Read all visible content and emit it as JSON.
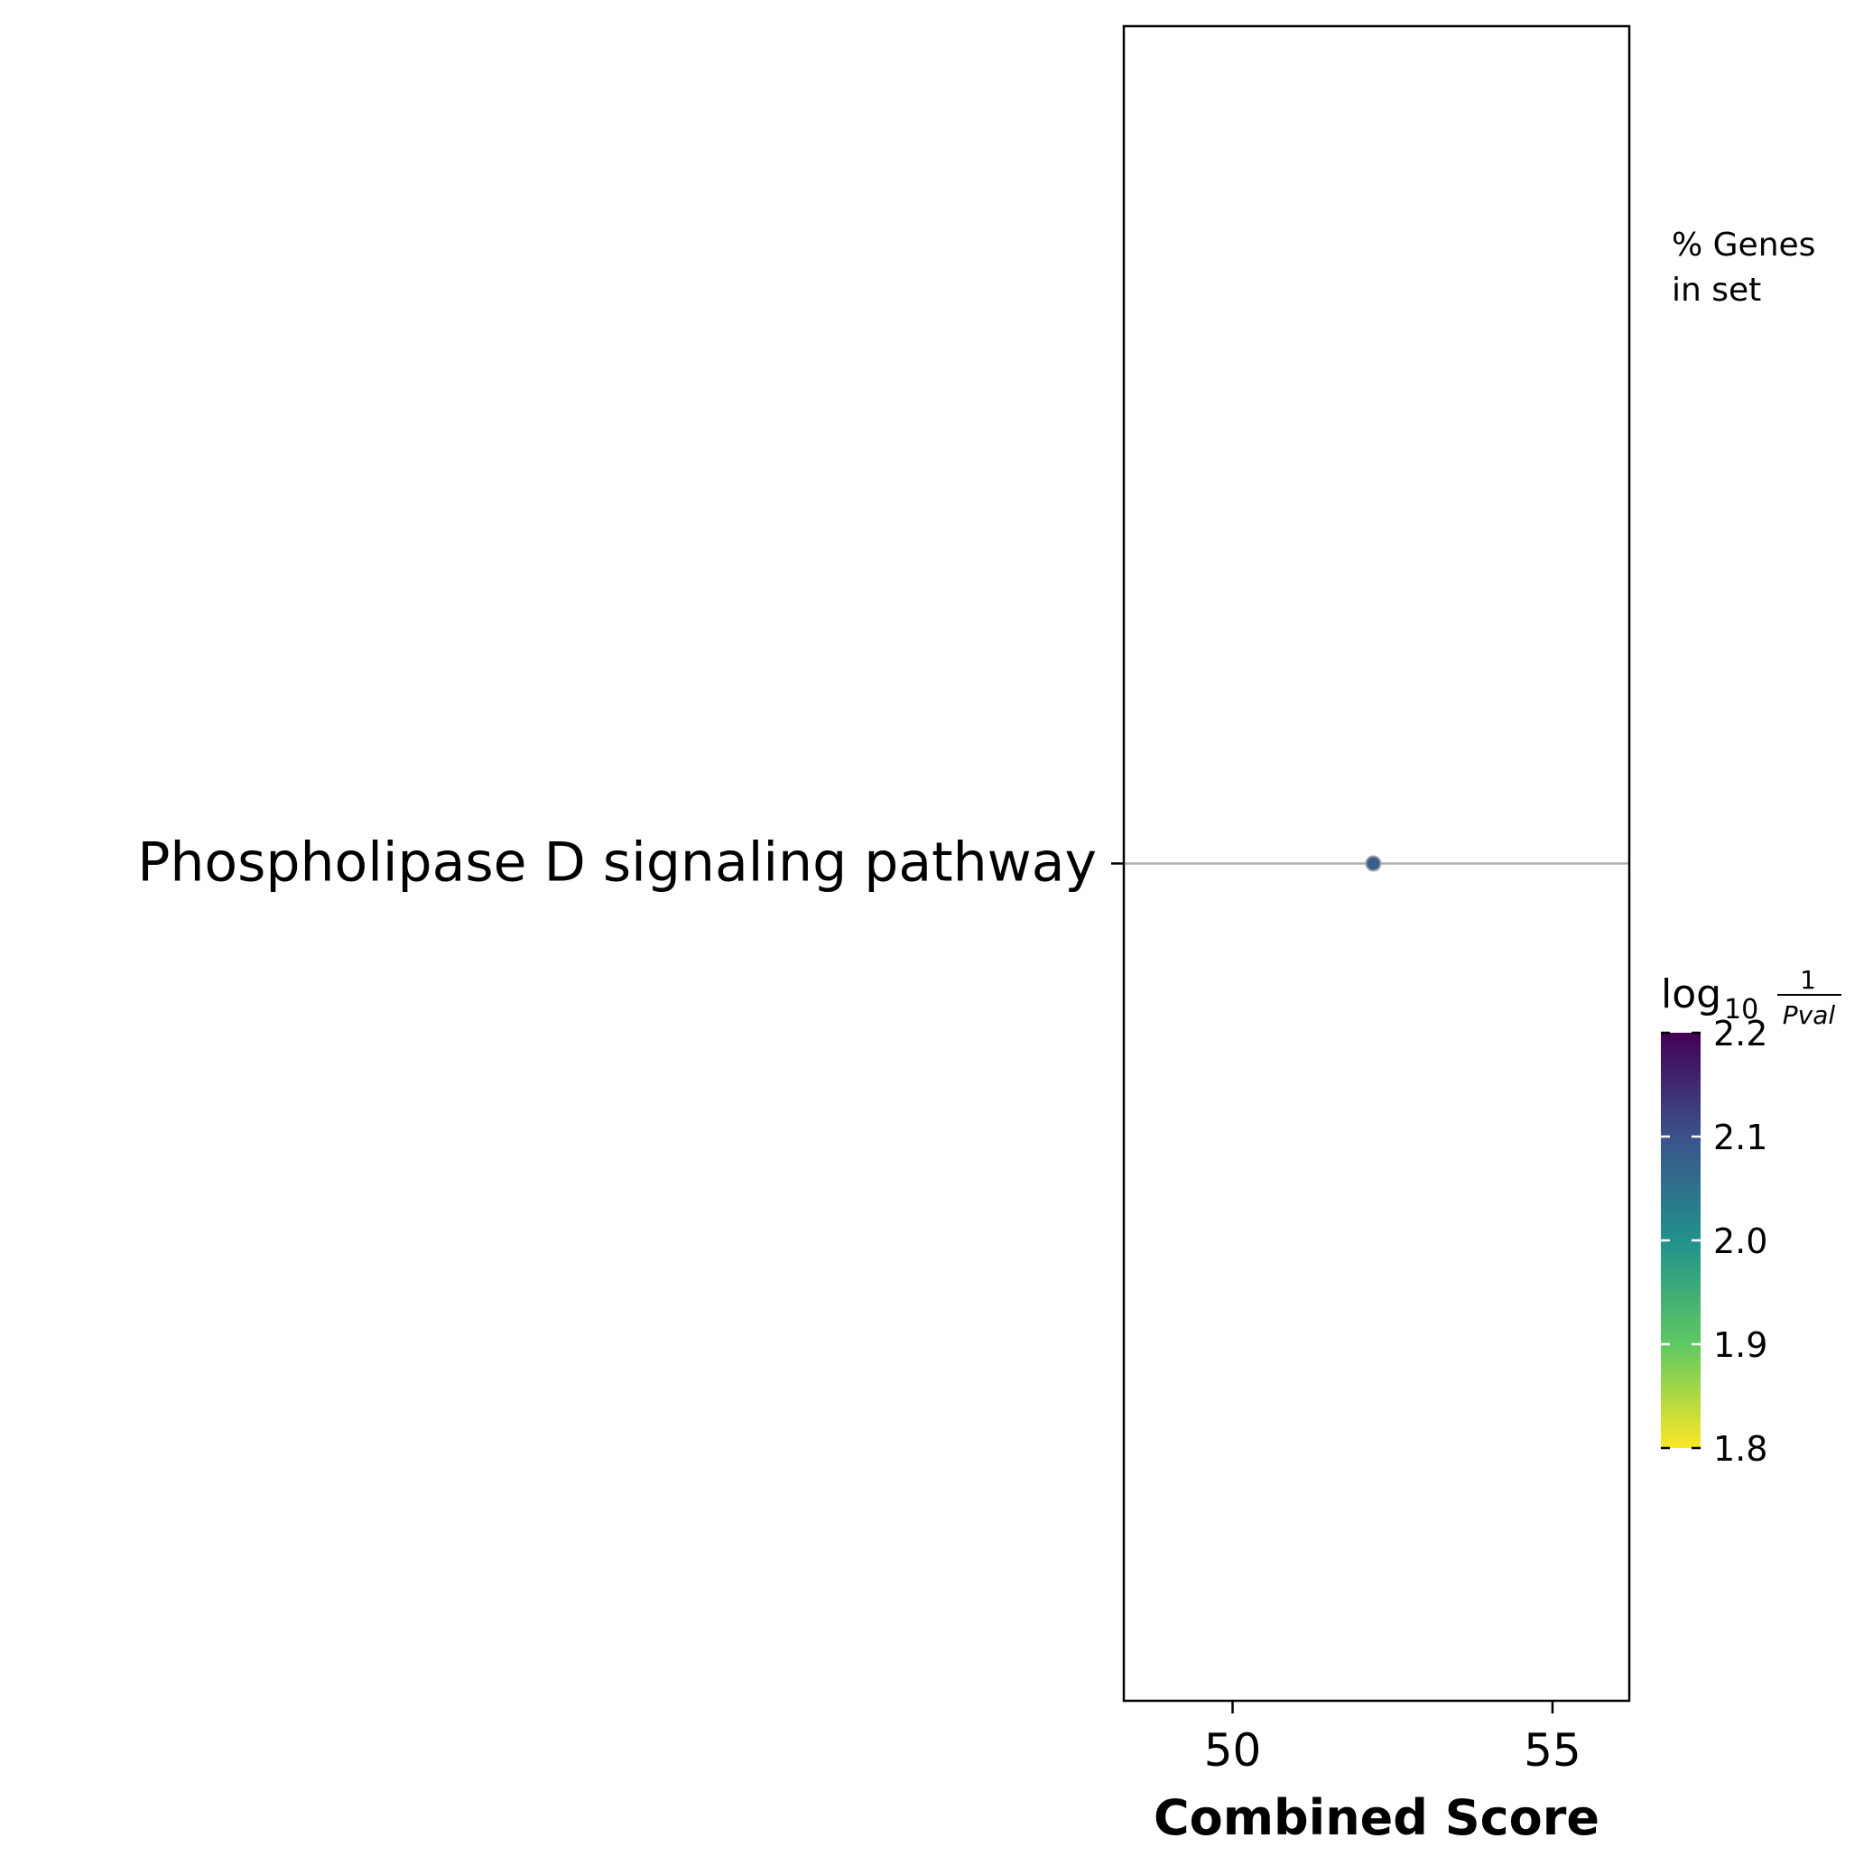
{
  "chart_data": {
    "type": "scatter",
    "title": "",
    "xlabel": "Combined Score",
    "ylabel": "",
    "xlim": [
      48.3,
      56.2
    ],
    "xticks": [
      50,
      55
    ],
    "xtick_labels": [
      "50",
      "55"
    ],
    "categories": [
      "Phospholipase D signaling pathway"
    ],
    "points": [
      {
        "term": "Phospholipase D signaling pathway",
        "x": 52.2,
        "log10_1_over_pval": 2.08
      }
    ],
    "size_legend": {
      "title_line1": "% Genes",
      "title_line2": "in set"
    },
    "colorbar": {
      "label_main": "log",
      "label_sub": "10",
      "label_num": "1",
      "label_den": "Pval",
      "min": 1.8,
      "max": 2.2,
      "ticks": [
        1.8,
        1.9,
        2.0,
        2.1,
        2.2
      ],
      "tick_labels": [
        "1.8",
        "1.9",
        "2.0",
        "2.1",
        "2.2"
      ],
      "colormap": "viridis_r",
      "colors": [
        "#fde725",
        "#5ec962",
        "#21918c",
        "#3b528b",
        "#440154"
      ]
    },
    "grid": "horizontal",
    "legend_placement": "right"
  }
}
